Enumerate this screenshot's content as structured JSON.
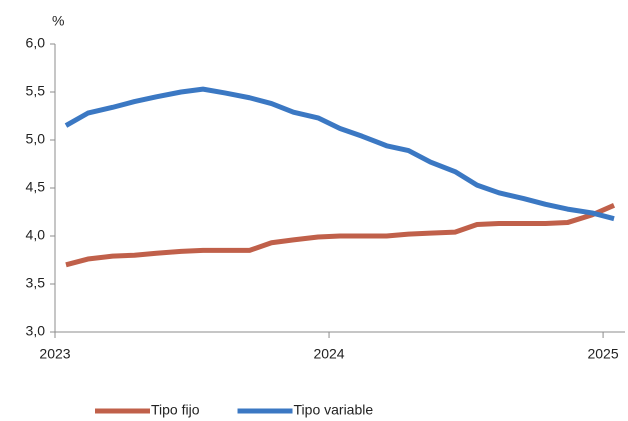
{
  "chart_data": {
    "type": "line",
    "y_label": "%",
    "x": [
      2023.04,
      2023.12,
      2023.21,
      2023.29,
      2023.37,
      2023.46,
      2023.54,
      2023.62,
      2023.71,
      2023.79,
      2023.87,
      2023.96,
      2024.04,
      2024.12,
      2024.21,
      2024.29,
      2024.37,
      2024.46,
      2024.54,
      2024.62,
      2024.71,
      2024.79,
      2024.87,
      2024.96,
      2025.04
    ],
    "series": [
      {
        "name": "Tipo fijo",
        "color": "#c0604a",
        "values": [
          3.7,
          3.76,
          3.79,
          3.8,
          3.82,
          3.84,
          3.85,
          3.85,
          3.85,
          3.93,
          3.96,
          3.99,
          4.0,
          4.0,
          4.0,
          4.02,
          4.03,
          4.04,
          4.12,
          4.13,
          4.13,
          4.13,
          4.14,
          4.22,
          4.32
        ]
      },
      {
        "name": "Tipo variable",
        "color": "#3b78c3",
        "values": [
          5.15,
          5.28,
          5.34,
          5.4,
          5.45,
          5.5,
          5.53,
          5.49,
          5.44,
          5.38,
          5.29,
          5.23,
          5.12,
          5.04,
          4.94,
          4.89,
          4.77,
          4.67,
          4.53,
          4.45,
          4.39,
          4.33,
          4.28,
          4.24,
          4.18
        ]
      }
    ],
    "xlim": [
      2023,
      2025.08
    ],
    "xticks": [
      2023,
      2024,
      2025
    ],
    "ylim": [
      3.0,
      6.0
    ],
    "yticks": [
      {
        "value": 3.0,
        "label": "3,0"
      },
      {
        "value": 3.5,
        "label": "3,5"
      },
      {
        "value": 4.0,
        "label": "4,0"
      },
      {
        "value": 4.5,
        "label": "4,5"
      },
      {
        "value": 5.0,
        "label": "5,0"
      },
      {
        "value": 5.5,
        "label": "5,5"
      },
      {
        "value": 6.0,
        "label": "6,0"
      }
    ],
    "grid": false,
    "legend": "bottom"
  }
}
